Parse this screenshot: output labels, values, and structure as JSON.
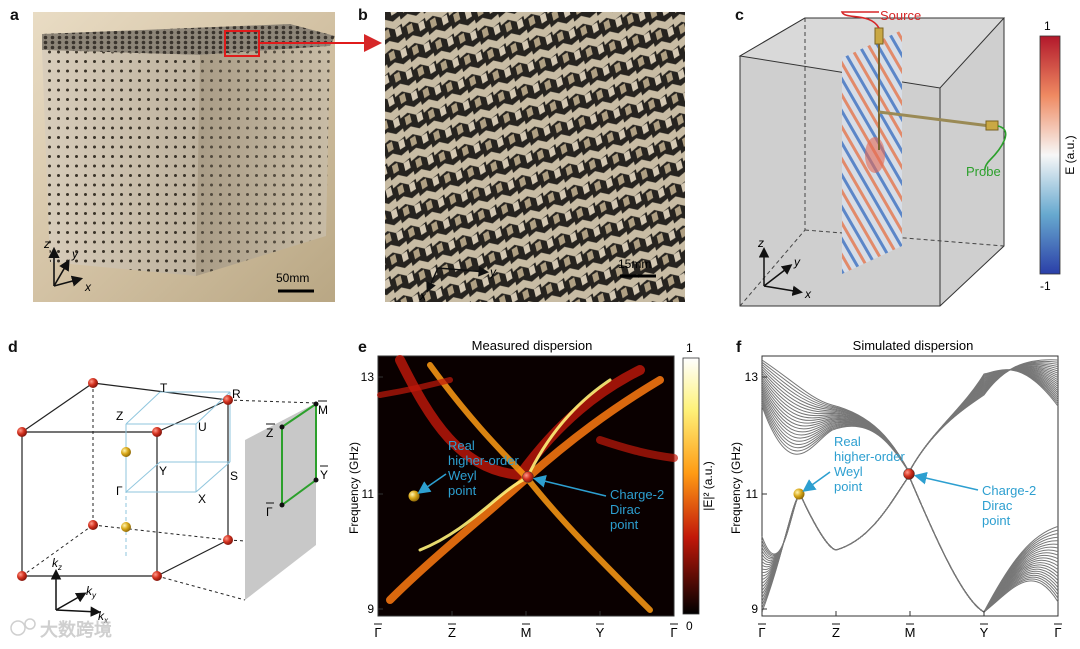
{
  "panels": {
    "a": {
      "letter": "a",
      "scale_bar": "50mm",
      "axes": {
        "z": "z",
        "y": "y",
        "x": "x"
      }
    },
    "b": {
      "letter": "b",
      "scale_bar": "15mm",
      "axes": {
        "y": "y",
        "x": "x"
      }
    },
    "c": {
      "letter": "c",
      "source_label": "Source",
      "probe_label": "Probe",
      "colorbar": {
        "max": "1",
        "min": "-1",
        "label": "E (a.u.)"
      },
      "axes": {
        "z": "z",
        "y": "y",
        "x": "x"
      }
    },
    "d": {
      "letter": "d",
      "points": {
        "T": "T",
        "R": "R",
        "Z": "Z",
        "U": "U",
        "Y": "Y",
        "S": "S",
        "Gamma": "Γ",
        "X": "X"
      },
      "surface_points": {
        "M": "M",
        "Z": "Z",
        "Y": "Y",
        "Gamma": "Γ"
      },
      "axes": {
        "kz": "k",
        "kz_sub": "z",
        "ky": "k",
        "ky_sub": "y",
        "kx": "k",
        "kx_sub": "x"
      }
    },
    "e": {
      "letter": "e",
      "title": "Measured dispersion",
      "ylabel": "Frequency (GHz)",
      "yticks": [
        "13",
        "11",
        "9"
      ],
      "xticks": [
        "Γ",
        "Z",
        "M",
        "Y",
        "Γ"
      ],
      "colorbar": {
        "max": "1",
        "min": "0",
        "label": "|E|² (a.u.)"
      },
      "annotation_weyl": [
        "Real",
        "higher-order",
        "Weyl",
        "point"
      ],
      "annotation_dirac": [
        "Charge-2",
        "Dirac",
        "point"
      ]
    },
    "f": {
      "letter": "f",
      "title": "Simulated dispersion",
      "ylabel": "Frequency (GHz)",
      "yticks": [
        "13",
        "11",
        "9"
      ],
      "xticks": [
        "Γ",
        "Z",
        "M",
        "Y",
        "Γ"
      ],
      "annotation_weyl": [
        "Real",
        "higher-order",
        "Weyl",
        "point"
      ],
      "annotation_dirac": [
        "Charge-2",
        "Dirac",
        "point"
      ]
    }
  },
  "watermark": "大数跨境",
  "colors": {
    "accent_blue": "#2d9fd0",
    "weyl_gold": "#c8a21a",
    "dirac_red": "#c0281f",
    "surface_green": "#2ca02c",
    "band_gray": "#7a7a7a",
    "source_red": "#d62728",
    "probe_green": "#2ca02c"
  }
}
